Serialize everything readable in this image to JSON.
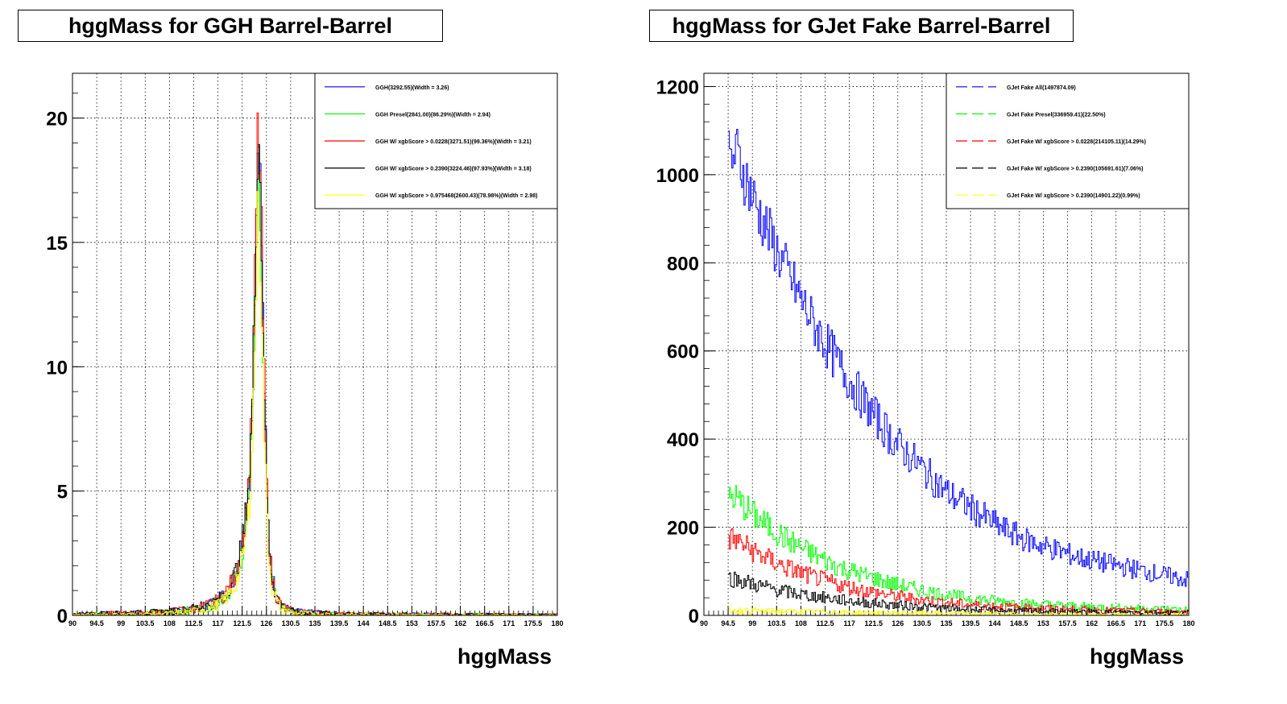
{
  "chart_data": [
    {
      "type": "line",
      "title": "hggMass for GGH Barrel-Barrel",
      "xlabel": "hggMass",
      "ylabel": "",
      "xlim": [
        90,
        180
      ],
      "ylim": [
        0,
        21.8
      ],
      "grid": true,
      "legend_position": "top-right",
      "x_tick_labels": [
        "90",
        "94.5",
        "99",
        "103.5",
        "108",
        "112.5",
        "117",
        "121.5",
        "126",
        "130.5",
        "135",
        "139.5",
        "144",
        "148.5",
        "153",
        "157.5",
        "162",
        "166.5",
        "171",
        "175.5",
        "180"
      ],
      "y_tick_labels": [
        "0",
        "5",
        "10",
        "15",
        "20"
      ],
      "x": [
        90,
        100,
        108,
        112,
        115,
        117,
        118,
        119,
        120,
        121,
        122,
        123,
        123.5,
        124,
        124.5,
        125,
        125.5,
        126,
        126.5,
        127,
        128,
        129,
        131,
        140,
        180
      ],
      "series": [
        {
          "name": "GGH(3292.55)(Width = 3.26)",
          "color": "#0000ff",
          "values": [
            0.05,
            0.08,
            0.15,
            0.25,
            0.4,
            0.6,
            0.8,
            1.1,
            1.5,
            2.3,
            3.6,
            6.2,
            9.5,
            14.8,
            20.2,
            16.5,
            10.5,
            5.6,
            3.0,
            1.6,
            0.7,
            0.35,
            0.15,
            0.05,
            0.02
          ]
        },
        {
          "name": "GGH Presel(2841.00)(86.29%)(Width = 2.94)",
          "color": "#00ff00",
          "values": [
            0.04,
            0.07,
            0.13,
            0.22,
            0.35,
            0.52,
            0.7,
            0.95,
            1.3,
            2.0,
            3.1,
            5.5,
            8.5,
            13.2,
            18.6,
            15.0,
            9.3,
            4.9,
            2.6,
            1.4,
            0.6,
            0.3,
            0.12,
            0.04,
            0.02
          ]
        },
        {
          "name": "GGH W/ xgbScore > 0.0228(3271.51)(99.36%)(Width = 3.21)",
          "color": "#ff0000",
          "values": [
            0.05,
            0.08,
            0.15,
            0.25,
            0.4,
            0.6,
            0.8,
            1.1,
            1.5,
            2.3,
            3.6,
            6.2,
            9.5,
            14.8,
            20.6,
            16.6,
            10.6,
            5.6,
            3.0,
            1.6,
            0.7,
            0.35,
            0.15,
            0.05,
            0.02
          ]
        },
        {
          "name": "GGH W/ xgbScore > 0.2390(3224.46)(97.93%)(Width = 3.18)",
          "color": "#000000",
          "values": [
            0.05,
            0.08,
            0.15,
            0.25,
            0.4,
            0.6,
            0.8,
            1.1,
            1.5,
            2.3,
            3.6,
            6.2,
            9.5,
            14.6,
            20.3,
            16.4,
            10.4,
            5.5,
            2.9,
            1.6,
            0.7,
            0.35,
            0.15,
            0.05,
            0.02
          ]
        },
        {
          "name": "GGH W/ xgbScore > 0.975468(2600.43)(78.98%)(Width = 2.98)",
          "color": "#ffff00",
          "values": [
            0.02,
            0.04,
            0.08,
            0.15,
            0.28,
            0.42,
            0.6,
            0.8,
            1.1,
            1.7,
            2.7,
            4.8,
            7.6,
            12.0,
            17.1,
            13.6,
            8.5,
            4.4,
            2.3,
            1.2,
            0.5,
            0.25,
            0.1,
            0.03,
            0.01
          ]
        }
      ]
    },
    {
      "type": "line",
      "title": "hggMass for GJet Fake Barrel-Barrel",
      "xlabel": "hggMass",
      "ylabel": "",
      "xlim": [
        90,
        180
      ],
      "ylim": [
        0,
        1230
      ],
      "grid": true,
      "legend_position": "top-right",
      "x_tick_labels": [
        "90",
        "94.5",
        "99",
        "103.5",
        "108",
        "112.5",
        "117",
        "121.5",
        "126",
        "130.5",
        "135",
        "139.5",
        "144",
        "148.5",
        "153",
        "157.5",
        "162",
        "166.5",
        "171",
        "175.5",
        "180"
      ],
      "y_tick_labels": [
        "0",
        "200",
        "400",
        "600",
        "800",
        "1000",
        "1200"
      ],
      "x": [
        95,
        96,
        100,
        105,
        110,
        115,
        120,
        125,
        130,
        135,
        140,
        145,
        150,
        160,
        170,
        180
      ],
      "series": [
        {
          "name": "GJet Fake All(1497874.09)",
          "color": "#0000ff",
          "values": [
            1030,
            1050,
            920,
            790,
            670,
            570,
            480,
            400,
            340,
            280,
            240,
            200,
            170,
            130,
            105,
            80
          ]
        },
        {
          "name": "GJet Fake Presel(336959.41)(22.50%)",
          "color": "#00ff00",
          "values": [
            270,
            265,
            220,
            175,
            140,
            110,
            90,
            72,
            58,
            46,
            38,
            32,
            27,
            20,
            16,
            13
          ]
        },
        {
          "name": "GJet Fake W/ xgbScore > 0.0228(214105.11)(14.29%)",
          "color": "#ff0000",
          "values": [
            175,
            170,
            140,
            110,
            88,
            70,
            56,
            45,
            36,
            29,
            24,
            20,
            17,
            13,
            10,
            8
          ]
        },
        {
          "name": "GJet Fake W/ xgbScore > 0.2390(105691.61)(7.06%)",
          "color": "#000000",
          "values": [
            85,
            82,
            68,
            54,
            44,
            36,
            29,
            24,
            20,
            16,
            13,
            11,
            10,
            8,
            7,
            6
          ]
        },
        {
          "name": "GJet Fake W/ xgbScore > 0.2390(14901.22)(0.99%)",
          "color": "#ffff00",
          "values": [
            12,
            11,
            10,
            9,
            8,
            7,
            6,
            5.5,
            5,
            4.5,
            4,
            3.5,
            3,
            2.5,
            2,
            2
          ]
        }
      ]
    }
  ]
}
